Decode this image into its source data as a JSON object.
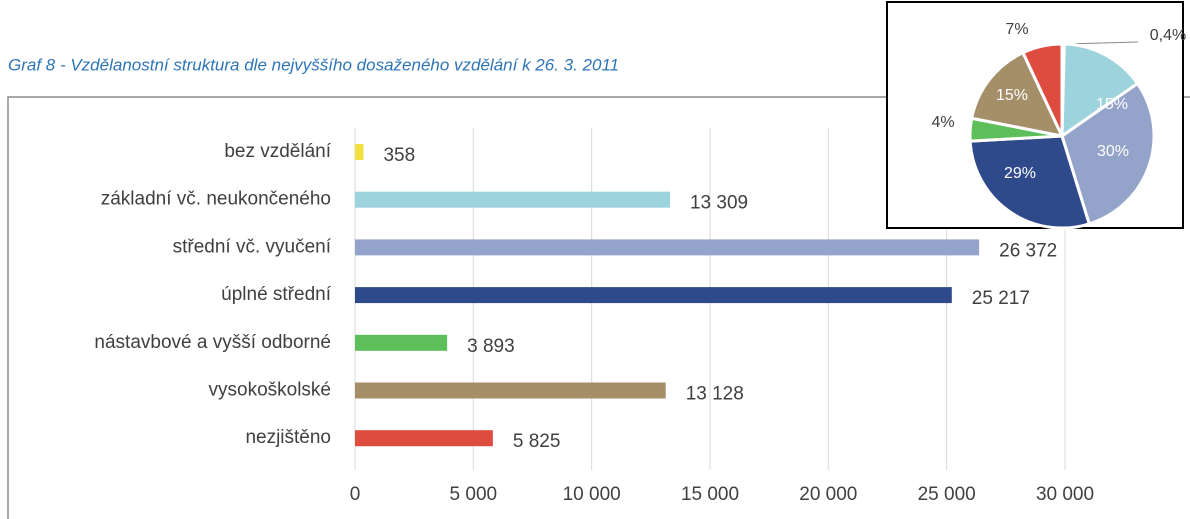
{
  "chart_data": [
    {
      "type": "barh",
      "title": "Graf 8 - Vzdělanostní struktura dle nejvyššího dosaženého vzdělání k 26. 3. 2011",
      "categories": [
        "bez vzdělání",
        "základní vč. neukončeného",
        "střední vč. vyučení",
        "úplné střední",
        "nástavbové a vyšší odborné",
        "vysokoškolské",
        "nezjištěno"
      ],
      "values": [
        358,
        13309,
        26372,
        25217,
        3893,
        13128,
        5825
      ],
      "value_labels": [
        "358",
        "13 309",
        "26 372",
        "25 217",
        "3 893",
        "13 128",
        "5 825"
      ],
      "colors": [
        "#f2e03c",
        "#9dd3dc",
        "#94a3c9",
        "#2f4a8a",
        "#5cbf5a",
        "#a48f68",
        "#de4b3f"
      ],
      "xlim": [
        0,
        30000
      ],
      "xticks": [
        0,
        {
          "value": 5000,
          "label": "5 000"
        },
        {
          "value": 10000,
          "label": "10 000"
        },
        {
          "value": 15000,
          "label": "15 000"
        },
        {
          "value": 20000,
          "label": "20 000"
        },
        {
          "value": 25000,
          "label": "25 000"
        },
        {
          "value": 30000,
          "label": "30 000"
        }
      ],
      "grid": true
    },
    {
      "type": "pie",
      "values": [
        0.4,
        15,
        30,
        29,
        4,
        15,
        7
      ],
      "value_labels": [
        "0,4%",
        "15%",
        "30%",
        "29%",
        "4%",
        "15%",
        "7%"
      ],
      "colors": [
        "#f2e03c",
        "#9dd3dc",
        "#94a3c9",
        "#2f4a8a",
        "#5cbf5a",
        "#a48f68",
        "#de4b3f"
      ]
    }
  ]
}
